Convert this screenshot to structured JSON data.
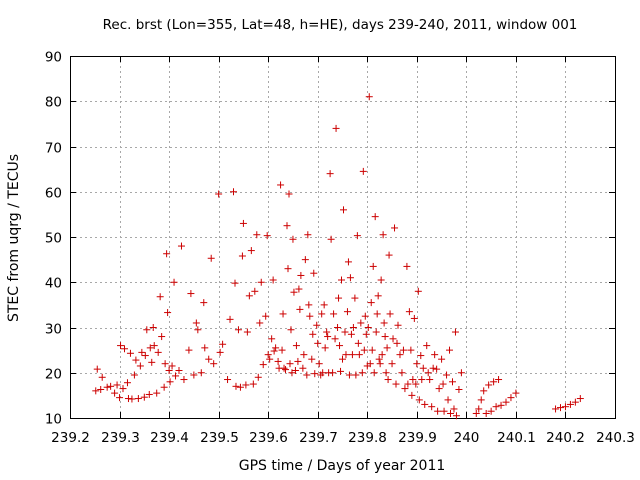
{
  "chart_data": {
    "type": "scatter",
    "title": "Rec. brst (Lon=355, Lat=48, h=HE), days 239-240, 2011, window 001",
    "xlabel": "GPS time / Days of year 2011",
    "ylabel": "STEC from uqrg / TECUs",
    "xlim": [
      239.2,
      240.3
    ],
    "ylim": [
      10,
      90
    ],
    "xticks": [
      "239.2",
      "239.3",
      "239.4",
      "239.5",
      "239.6",
      "239.7",
      "239.8",
      "239.9",
      "240",
      "240.1",
      "240.2",
      "240.3"
    ],
    "yticks": [
      "10",
      "20",
      "30",
      "40",
      "50",
      "60",
      "70",
      "80",
      "90"
    ],
    "grid": true,
    "marker": "plus",
    "color": "#cc0000",
    "points": [
      [
        239.252,
        16
      ],
      [
        239.255,
        20.8
      ],
      [
        239.262,
        16.3
      ],
      [
        239.265,
        19
      ],
      [
        239.275,
        16.8
      ],
      [
        239.282,
        17
      ],
      [
        239.29,
        15.5
      ],
      [
        239.295,
        17.3
      ],
      [
        239.3,
        14.5
      ],
      [
        239.302,
        26
      ],
      [
        239.307,
        16.5
      ],
      [
        239.31,
        25.3
      ],
      [
        239.316,
        17.8
      ],
      [
        239.318,
        14.3
      ],
      [
        239.322,
        24.3
      ],
      [
        239.325,
        14.2
      ],
      [
        239.33,
        19.5
      ],
      [
        239.333,
        22.8
      ],
      [
        239.338,
        14.3
      ],
      [
        239.342,
        21.5
      ],
      [
        239.345,
        24.5
      ],
      [
        239.35,
        14.6
      ],
      [
        239.352,
        23.8
      ],
      [
        239.355,
        29.5
      ],
      [
        239.36,
        15.2
      ],
      [
        239.362,
        25.5
      ],
      [
        239.365,
        22.3
      ],
      [
        239.368,
        30
      ],
      [
        239.37,
        26
      ],
      [
        239.375,
        15.5
      ],
      [
        239.378,
        24.5
      ],
      [
        239.382,
        36.8
      ],
      [
        239.385,
        28
      ],
      [
        239.39,
        16.8
      ],
      [
        239.392,
        22
      ],
      [
        239.395,
        46.3
      ],
      [
        239.397,
        33.3
      ],
      [
        239.4,
        20.5
      ],
      [
        239.402,
        18
      ],
      [
        239.406,
        21.5
      ],
      [
        239.41,
        40
      ],
      [
        239.413,
        19.3
      ],
      [
        239.42,
        20.5
      ],
      [
        239.425,
        48
      ],
      [
        239.43,
        18.5
      ],
      [
        239.44,
        25
      ],
      [
        239.444,
        37.5
      ],
      [
        239.45,
        19.5
      ],
      [
        239.455,
        31
      ],
      [
        239.458,
        29.5
      ],
      [
        239.465,
        20
      ],
      [
        239.47,
        35.5
      ],
      [
        239.472,
        25.5
      ],
      [
        239.48,
        23
      ],
      [
        239.485,
        45.3
      ],
      [
        239.49,
        22
      ],
      [
        239.5,
        59.5
      ],
      [
        239.503,
        24.5
      ],
      [
        239.508,
        26.3
      ],
      [
        239.518,
        18.5
      ],
      [
        239.523,
        31.8
      ],
      [
        239.53,
        60
      ],
      [
        239.533,
        39.8
      ],
      [
        239.535,
        17
      ],
      [
        239.54,
        29.5
      ],
      [
        239.544,
        16.8
      ],
      [
        239.548,
        45.8
      ],
      [
        239.55,
        53
      ],
      [
        239.555,
        17.3
      ],
      [
        239.558,
        29
      ],
      [
        239.562,
        37
      ],
      [
        239.566,
        47
      ],
      [
        239.57,
        17.5
      ],
      [
        239.573,
        38
      ],
      [
        239.577,
        50.5
      ],
      [
        239.58,
        19
      ],
      [
        239.583,
        31
      ],
      [
        239.586,
        40
      ],
      [
        239.59,
        21.8
      ],
      [
        239.595,
        32.5
      ],
      [
        239.598,
        50.3
      ],
      [
        239.6,
        24
      ],
      [
        239.603,
        23
      ],
      [
        239.607,
        27.5
      ],
      [
        239.61,
        40.5
      ],
      [
        239.612,
        24.8
      ],
      [
        239.615,
        25.5
      ],
      [
        239.62,
        22.5
      ],
      [
        239.622,
        21
      ],
      [
        239.625,
        61.5
      ],
      [
        239.628,
        25
      ],
      [
        239.63,
        33
      ],
      [
        239.632,
        21
      ],
      [
        239.635,
        20.7
      ],
      [
        239.638,
        52.5
      ],
      [
        239.64,
        43
      ],
      [
        239.642,
        59.5
      ],
      [
        239.644,
        22
      ],
      [
        239.646,
        29.5
      ],
      [
        239.648,
        20
      ],
      [
        239.65,
        49.5
      ],
      [
        239.652,
        37.8
      ],
      [
        239.655,
        20.5
      ],
      [
        239.657,
        26
      ],
      [
        239.66,
        22.5
      ],
      [
        239.662,
        38.5
      ],
      [
        239.664,
        34
      ],
      [
        239.666,
        41.5
      ],
      [
        239.67,
        21
      ],
      [
        239.672,
        24
      ],
      [
        239.675,
        45
      ],
      [
        239.678,
        19.5
      ],
      [
        239.68,
        50.5
      ],
      [
        239.682,
        35
      ],
      [
        239.684,
        32.5
      ],
      [
        239.688,
        23
      ],
      [
        239.69,
        28.5
      ],
      [
        239.692,
        42
      ],
      [
        239.694,
        19.8
      ],
      [
        239.698,
        30.5
      ],
      [
        239.7,
        26.5
      ],
      [
        239.703,
        22
      ],
      [
        239.706,
        19.5
      ],
      [
        239.708,
        33
      ],
      [
        239.71,
        20
      ],
      [
        239.713,
        35
      ],
      [
        239.715,
        25.5
      ],
      [
        239.718,
        29
      ],
      [
        239.72,
        28
      ],
      [
        239.722,
        20
      ],
      [
        239.725,
        64
      ],
      [
        239.727,
        49.5
      ],
      [
        239.73,
        20
      ],
      [
        239.732,
        33
      ],
      [
        239.735,
        27.5
      ],
      [
        239.737,
        74
      ],
      [
        239.74,
        30
      ],
      [
        239.742,
        36.5
      ],
      [
        239.744,
        26
      ],
      [
        239.746,
        20.3
      ],
      [
        239.748,
        40.5
      ],
      [
        239.75,
        23
      ],
      [
        239.752,
        56
      ],
      [
        239.755,
        29
      ],
      [
        239.757,
        24
      ],
      [
        239.76,
        33.5
      ],
      [
        239.762,
        44.5
      ],
      [
        239.764,
        19.5
      ],
      [
        239.766,
        41
      ],
      [
        239.768,
        28.5
      ],
      [
        239.77,
        24
      ],
      [
        239.772,
        30
      ],
      [
        239.775,
        36.5
      ],
      [
        239.777,
        19.5
      ],
      [
        239.78,
        50.3
      ],
      [
        239.782,
        26.5
      ],
      [
        239.784,
        24
      ],
      [
        239.787,
        31
      ],
      [
        239.79,
        20
      ],
      [
        239.792,
        64.5
      ],
      [
        239.794,
        25
      ],
      [
        239.796,
        32.5
      ],
      [
        239.798,
        28.5
      ],
      [
        239.8,
        21.5
      ],
      [
        239.802,
        30
      ],
      [
        239.804,
        81
      ],
      [
        239.806,
        22
      ],
      [
        239.808,
        35.5
      ],
      [
        239.81,
        25
      ],
      [
        239.812,
        43.5
      ],
      [
        239.814,
        20
      ],
      [
        239.816,
        54.5
      ],
      [
        239.818,
        29
      ],
      [
        239.82,
        33
      ],
      [
        239.822,
        37
      ],
      [
        239.824,
        23
      ],
      [
        239.826,
        22
      ],
      [
        239.828,
        40.5
      ],
      [
        239.83,
        24
      ],
      [
        239.832,
        50.5
      ],
      [
        239.834,
        31
      ],
      [
        239.836,
        28
      ],
      [
        239.838,
        20
      ],
      [
        239.84,
        25.5
      ],
      [
        239.842,
        18.5
      ],
      [
        239.844,
        46
      ],
      [
        239.846,
        33
      ],
      [
        239.85,
        22
      ],
      [
        239.852,
        27.5
      ],
      [
        239.855,
        52
      ],
      [
        239.858,
        17.5
      ],
      [
        239.86,
        26.5
      ],
      [
        239.862,
        30.5
      ],
      [
        239.866,
        24
      ],
      [
        239.87,
        20
      ],
      [
        239.873,
        25
      ],
      [
        239.876,
        16.5
      ],
      [
        239.88,
        43.5
      ],
      [
        239.882,
        17.5
      ],
      [
        239.885,
        33.5
      ],
      [
        239.888,
        25
      ],
      [
        239.89,
        15
      ],
      [
        239.892,
        18.5
      ],
      [
        239.895,
        32
      ],
      [
        239.898,
        17.5
      ],
      [
        239.9,
        22
      ],
      [
        239.903,
        38
      ],
      [
        239.905,
        14
      ],
      [
        239.908,
        23.8
      ],
      [
        239.91,
        18.5
      ],
      [
        239.913,
        21
      ],
      [
        239.916,
        13
      ],
      [
        239.92,
        26
      ],
      [
        239.923,
        20
      ],
      [
        239.926,
        18.5
      ],
      [
        239.93,
        12.5
      ],
      [
        239.933,
        21
      ],
      [
        239.936,
        24
      ],
      [
        239.94,
        20.8
      ],
      [
        239.942,
        11.5
      ],
      [
        239.945,
        16.5
      ],
      [
        239.95,
        23
      ],
      [
        239.953,
        17.5
      ],
      [
        239.955,
        11.5
      ],
      [
        239.96,
        19.5
      ],
      [
        239.963,
        14
      ],
      [
        239.966,
        25
      ],
      [
        239.968,
        11
      ],
      [
        239.972,
        18
      ],
      [
        239.975,
        12
      ],
      [
        239.978,
        29
      ],
      [
        239.98,
        10.5
      ],
      [
        239.985,
        16.3
      ],
      [
        239.99,
        20
      ],
      [
        240.02,
        11
      ],
      [
        240.025,
        12
      ],
      [
        240.03,
        14
      ],
      [
        240.035,
        16
      ],
      [
        240.04,
        11
      ],
      [
        240.045,
        17.3
      ],
      [
        240.05,
        11.5
      ],
      [
        240.055,
        18
      ],
      [
        240.06,
        12.5
      ],
      [
        240.065,
        18.5
      ],
      [
        240.07,
        12.8
      ],
      [
        240.08,
        13.5
      ],
      [
        240.09,
        14.5
      ],
      [
        240.1,
        15.5
      ],
      [
        240.18,
        12
      ],
      [
        240.19,
        12.3
      ],
      [
        240.2,
        12.5
      ],
      [
        240.21,
        13
      ],
      [
        240.22,
        13.5
      ],
      [
        240.23,
        14.3
      ]
    ]
  }
}
